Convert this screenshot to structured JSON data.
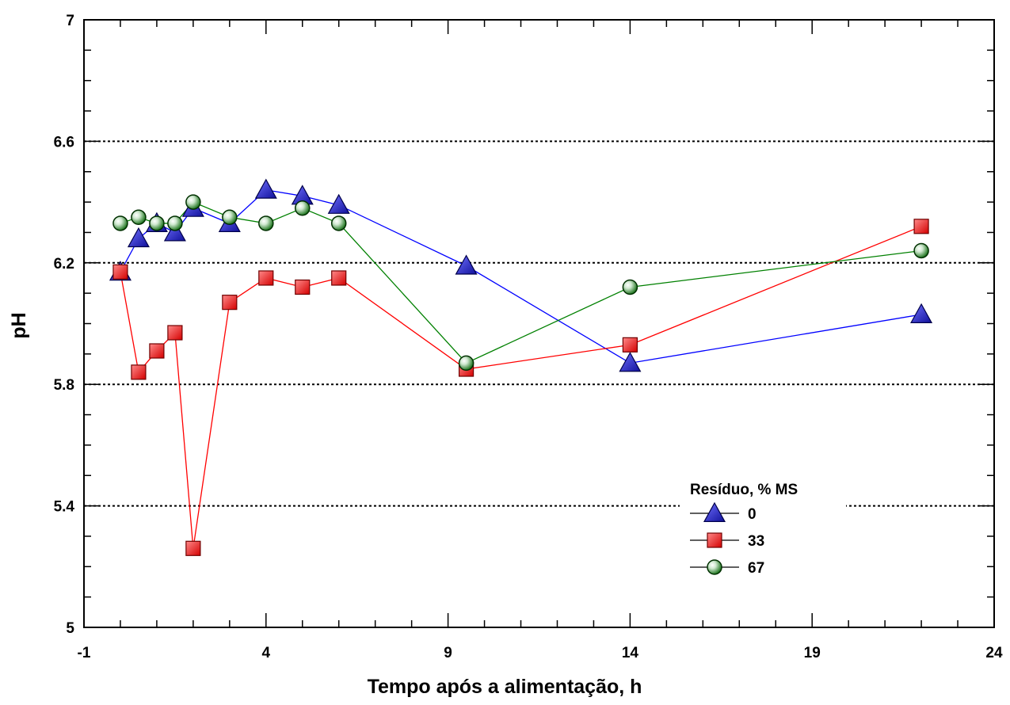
{
  "chart_data": {
    "type": "line",
    "xlabel": "Tempo após a alimentação, h",
    "ylabel": "pH",
    "xlim": [
      -1,
      24
    ],
    "ylim": [
      5,
      7
    ],
    "xticks": [
      -1,
      4,
      9,
      14,
      19,
      24
    ],
    "yticks": [
      5,
      5.4,
      5.8,
      6.2,
      6.6,
      7
    ],
    "x_tick_labels": [
      "-1",
      "4",
      "9",
      "14",
      "19",
      "24"
    ],
    "y_tick_labels": [
      "5",
      "5.4",
      "5.8",
      "6.2",
      "6.6",
      "7"
    ],
    "grid_y": [
      5.4,
      5.8,
      6.2,
      6.6
    ],
    "legend": {
      "title": "Resíduo, % MS",
      "placement": "bottom-right"
    },
    "series": [
      {
        "name": "0",
        "marker": "triangle",
        "line_color": "#0000ff",
        "fill_color": "#2424c8",
        "x": [
          0,
          0.5,
          1,
          1.5,
          2,
          3,
          4,
          5,
          6,
          9.5,
          14,
          22
        ],
        "y": [
          6.17,
          6.28,
          6.33,
          6.3,
          6.38,
          6.33,
          6.44,
          6.42,
          6.39,
          6.19,
          5.87,
          6.03
        ]
      },
      {
        "name": "33",
        "marker": "square",
        "line_color": "#ff0000",
        "fill_color": "#ee1c1c",
        "x": [
          0,
          0.5,
          1,
          1.5,
          2,
          3,
          4,
          5,
          6,
          9.5,
          14,
          22
        ],
        "y": [
          6.17,
          5.84,
          5.91,
          5.97,
          5.26,
          6.07,
          6.15,
          6.12,
          6.15,
          5.85,
          5.93,
          6.32
        ]
      },
      {
        "name": "67",
        "marker": "circle",
        "line_color": "#008000",
        "fill_color": "#1a7a1a",
        "x": [
          0,
          0.5,
          1,
          1.5,
          2,
          3,
          4,
          5,
          6,
          9.5,
          14,
          22
        ],
        "y": [
          6.33,
          6.35,
          6.33,
          6.33,
          6.4,
          6.35,
          6.33,
          6.38,
          6.33,
          5.87,
          6.12,
          6.24
        ]
      }
    ]
  }
}
